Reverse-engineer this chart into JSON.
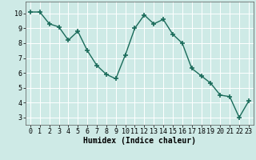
{
  "x": [
    0,
    1,
    2,
    3,
    4,
    5,
    6,
    7,
    8,
    9,
    10,
    11,
    12,
    13,
    14,
    15,
    16,
    17,
    18,
    19,
    20,
    21,
    22,
    23
  ],
  "y": [
    10.1,
    10.1,
    9.3,
    9.1,
    8.2,
    8.8,
    7.5,
    6.5,
    5.9,
    5.6,
    7.2,
    9.0,
    9.9,
    9.3,
    9.6,
    8.6,
    8.0,
    6.3,
    5.8,
    5.3,
    4.5,
    4.4,
    3.0,
    4.1
  ],
  "line_color": "#1a6b5a",
  "marker": "+",
  "markersize": 5,
  "markeredgewidth": 1.2,
  "linewidth": 1.0,
  "background_color": "#ceeae6",
  "grid_color": "#ffffff",
  "xlabel": "Humidex (Indice chaleur)",
  "xlabel_fontsize": 7,
  "tick_fontsize": 6,
  "ylim": [
    2.5,
    10.8
  ],
  "xlim": [
    -0.5,
    23.5
  ],
  "yticks": [
    3,
    4,
    5,
    6,
    7,
    8,
    9,
    10
  ],
  "xticks": [
    0,
    1,
    2,
    3,
    4,
    5,
    6,
    7,
    8,
    9,
    10,
    11,
    12,
    13,
    14,
    15,
    16,
    17,
    18,
    19,
    20,
    21,
    22,
    23
  ]
}
